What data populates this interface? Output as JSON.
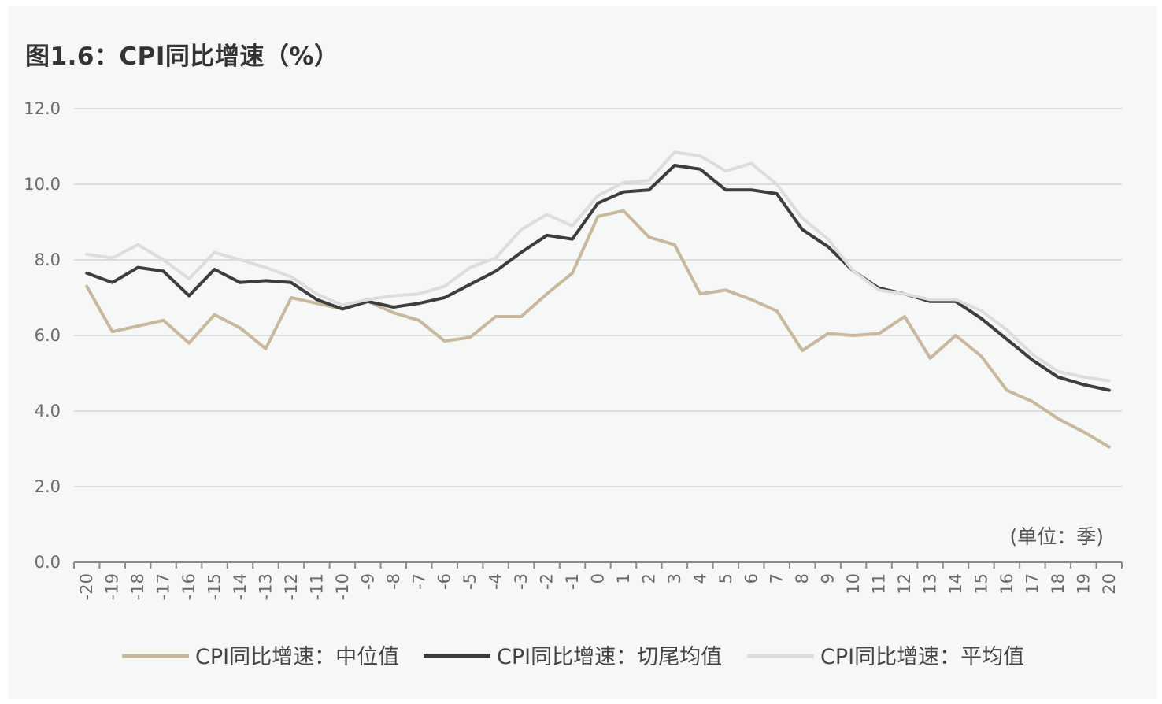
{
  "title": "图1.6：CPI同比增速（%）",
  "chart_data": {
    "type": "line",
    "title": "图1.6：CPI同比增速（%）",
    "xlabel": "(单位：季)",
    "ylabel": "",
    "ylim": [
      0,
      12
    ],
    "yticks": [
      "0.0",
      "2.0",
      "4.0",
      "6.0",
      "8.0",
      "10.0",
      "12.0"
    ],
    "grid": true,
    "legend_position": "bottom",
    "x": [
      "-20",
      "-19",
      "-18",
      "-17",
      "-16",
      "-15",
      "-14",
      "-13",
      "-12",
      "-11",
      "-10",
      "-9",
      "-8",
      "-7",
      "-6",
      "-5",
      "-4",
      "-3",
      "-2",
      "-1",
      "0",
      "1",
      "2",
      "3",
      "4",
      "5",
      "6",
      "7",
      "8",
      "9",
      "10",
      "11",
      "12",
      "13",
      "14",
      "15",
      "16",
      "17",
      "18",
      "19",
      "20"
    ],
    "series": [
      {
        "name": "CPI同比增速：中位值",
        "color": "#c9b99a",
        "values": [
          7.3,
          6.1,
          6.25,
          6.4,
          5.8,
          6.55,
          6.2,
          5.65,
          7.0,
          6.85,
          6.7,
          6.9,
          6.6,
          6.4,
          5.85,
          5.95,
          6.5,
          6.5,
          7.1,
          7.65,
          9.15,
          9.3,
          8.6,
          8.4,
          7.1,
          7.2,
          6.95,
          6.65,
          5.6,
          6.05,
          6.0,
          6.05,
          6.5,
          5.4,
          6.0,
          5.45,
          4.55,
          4.25,
          3.8,
          3.45,
          3.05
        ]
      },
      {
        "name": "CPI同比增速：切尾均值",
        "color": "#3b3d3f",
        "values": [
          7.65,
          7.4,
          7.8,
          7.7,
          7.05,
          7.75,
          7.4,
          7.45,
          7.4,
          6.95,
          6.7,
          6.9,
          6.75,
          6.85,
          7.0,
          7.35,
          7.7,
          8.2,
          8.65,
          8.55,
          9.5,
          9.8,
          9.85,
          10.5,
          10.4,
          9.85,
          9.85,
          9.75,
          8.8,
          8.35,
          7.7,
          7.25,
          7.1,
          6.9,
          6.9,
          6.45,
          5.9,
          5.35,
          4.9,
          4.7,
          4.55
        ]
      },
      {
        "name": "CPI同比增速：平均值",
        "color": "#dddddd",
        "values": [
          8.15,
          8.05,
          8.4,
          8.0,
          7.5,
          8.2,
          8.0,
          7.8,
          7.55,
          7.1,
          6.8,
          6.95,
          7.05,
          7.1,
          7.3,
          7.8,
          8.05,
          8.8,
          9.2,
          8.9,
          9.7,
          10.05,
          10.1,
          10.85,
          10.75,
          10.35,
          10.55,
          10.0,
          9.1,
          8.55,
          7.7,
          7.2,
          7.1,
          6.95,
          6.95,
          6.65,
          6.15,
          5.5,
          5.05,
          4.9,
          4.8
        ]
      }
    ]
  }
}
